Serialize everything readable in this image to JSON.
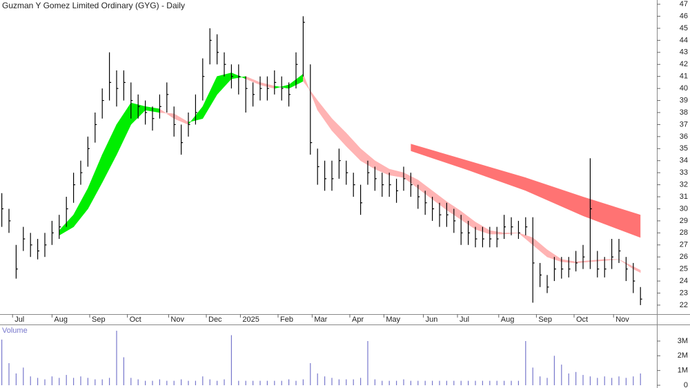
{
  "chart_data": [
    {
      "type": "hlc",
      "title": "Guzman Y Gomez Limited Ordinary (GYG) - Daily",
      "x": [
        1,
        5,
        9,
        13,
        17,
        21,
        25,
        29,
        33,
        37,
        41,
        45,
        49,
        53,
        57,
        61,
        65,
        69,
        73,
        77,
        81,
        85,
        89,
        93,
        97,
        101,
        105,
        109,
        113,
        117,
        121,
        125,
        129,
        133,
        137,
        141,
        145,
        149,
        153,
        157,
        161,
        165,
        169,
        173,
        177,
        181,
        185,
        189,
        193,
        197,
        201,
        205,
        209,
        213,
        217,
        221,
        225,
        229,
        233,
        237,
        241,
        245,
        249,
        253,
        257,
        261,
        265,
        269,
        273,
        277,
        281,
        285,
        289,
        293,
        297,
        301,
        305,
        309,
        313,
        317,
        321,
        325,
        329,
        333,
        337,
        341,
        345,
        349,
        353,
        357
      ],
      "high": [
        31.3,
        30,
        27,
        28.5,
        28,
        27.5,
        28,
        29,
        29.5,
        31,
        33,
        34,
        36,
        38,
        40,
        43,
        41.5,
        41.5,
        40.5,
        39.5,
        39,
        38.5,
        39.5,
        40.5,
        38.5,
        37,
        38,
        39.5,
        42.5,
        45,
        44.5,
        43,
        42,
        42,
        41,
        40.5,
        41,
        41,
        41.5,
        41,
        40.5,
        43,
        46,
        42,
        35,
        34,
        34,
        35,
        34,
        33,
        32,
        34,
        33.5,
        33,
        33,
        32.5,
        33.5,
        33,
        32,
        31.5,
        31,
        30.5,
        30.5,
        30,
        29.5,
        29,
        28.5,
        28.5,
        28.5,
        28.5,
        29.5,
        29.3,
        29,
        29.3,
        29.3,
        25.5,
        24.5,
        26,
        26,
        26,
        26.5,
        27,
        34.2,
        26.5,
        26,
        27.5,
        27.5,
        26,
        25.5,
        23.5
      ],
      "low": [
        28.5,
        28,
        24.2,
        26.5,
        26,
        25.8,
        26,
        27,
        27.5,
        28.5,
        30.5,
        32,
        33.5,
        35.5,
        37.5,
        39,
        38.5,
        39,
        37.5,
        37.5,
        37,
        36.5,
        37.5,
        38,
        36,
        34.5,
        36,
        37,
        39,
        42,
        42,
        41,
        40,
        39.5,
        38,
        38.5,
        39,
        39,
        39.5,
        39,
        38.5,
        40,
        41,
        34.5,
        32,
        31.5,
        31.5,
        32.5,
        32,
        31,
        29.5,
        32,
        31.5,
        31,
        31,
        30.5,
        31.5,
        31,
        30,
        29.5,
        29,
        28.5,
        28.5,
        28,
        27,
        27,
        26.8,
        26.8,
        26.8,
        26.8,
        27.5,
        27.8,
        27.5,
        27.8,
        22.2,
        23.5,
        23,
        24,
        24.2,
        24.3,
        24.8,
        25,
        25,
        24.3,
        24.3,
        25,
        25.5,
        24,
        23,
        22
      ],
      "close": [
        30,
        29,
        25,
        27.5,
        27,
        26.5,
        27,
        28,
        28.5,
        30,
        32,
        33,
        35,
        37,
        39,
        40.5,
        40,
        40.5,
        39,
        38.5,
        38,
        37.5,
        38.5,
        39.5,
        37,
        35.5,
        37,
        38,
        41,
        44,
        43,
        42,
        41,
        41,
        40,
        39.5,
        40,
        40,
        40.5,
        40,
        39.5,
        42,
        45.5,
        35.5,
        33.5,
        32.5,
        32.5,
        34,
        33,
        32,
        30.5,
        33,
        32.5,
        32,
        32,
        31.5,
        32.5,
        32,
        31,
        30.5,
        30,
        29.5,
        29.5,
        29,
        28,
        28,
        27.5,
        27.5,
        27.5,
        27.5,
        28.5,
        28.5,
        28,
        28.5,
        25.5,
        24.5,
        23.5,
        25,
        25,
        25,
        25.5,
        26,
        30,
        25,
        25,
        26,
        26.5,
        25,
        24,
        22.5
      ],
      "color": "#000000",
      "ema_band": {
        "x": [
          33,
          41,
          49,
          57,
          65,
          73,
          81,
          89,
          97,
          105,
          113,
          121,
          129,
          137,
          145,
          153,
          161,
          169,
          177,
          185,
          193,
          201,
          209,
          217,
          225,
          233,
          241,
          249,
          257,
          265,
          273,
          281,
          289,
          297,
          305,
          313,
          321,
          329,
          337,
          345,
          353,
          357
        ],
        "fast": [
          28.2,
          29.5,
          31.7,
          34.5,
          37,
          38.8,
          38.5,
          38.3,
          37.5,
          37,
          38.5,
          41,
          41.3,
          40.8,
          40.3,
          40.0,
          40.3,
          41.2,
          38.2,
          36.5,
          35.2,
          34,
          33.3,
          32.8,
          32.6,
          31.7,
          30.8,
          29.9,
          29.1,
          28.3,
          27.9,
          27.9,
          28.0,
          27.0,
          26.0,
          25.6,
          25.5,
          25.6,
          25.7,
          25.8,
          25.0,
          24.7
        ],
        "slow": [
          27.8,
          28.5,
          30,
          32.2,
          34.5,
          37,
          38.2,
          38,
          37.9,
          37.2,
          37.5,
          39.5,
          40.8,
          41.0,
          40.5,
          40.2,
          40.0,
          40.6,
          39,
          37.5,
          36.3,
          35,
          34,
          33.3,
          33.0,
          32.4,
          31.5,
          30.6,
          29.8,
          28.9,
          28.2,
          28.0,
          28.0,
          27.6,
          26.6,
          25.8,
          25.6,
          25.7,
          25.8,
          25.8,
          25.2,
          24.9
        ],
        "up_color": "#00ee00",
        "down_color": "#ffb3b3"
      },
      "long_band": {
        "x": [
          229,
          261,
          293,
          325,
          357
        ],
        "upper": [
          35.4,
          34,
          32.6,
          31,
          29.5
        ],
        "lower": [
          34.8,
          33.2,
          31.5,
          29.4,
          27.6
        ],
        "color": "#ff7373"
      },
      "xlim": [
        0,
        366.15
      ],
      "xticks": [
        {
          "value": 7,
          "label": "Jul"
        },
        {
          "value": 29,
          "label": "Aug"
        },
        {
          "value": 50,
          "label": "Sep"
        },
        {
          "value": 71,
          "label": "Oct"
        },
        {
          "value": 94,
          "label": "Nov"
        },
        {
          "value": 115,
          "label": "Dec"
        },
        {
          "value": 134,
          "label": "2025"
        },
        {
          "value": 155,
          "label": "Feb"
        },
        {
          "value": 174,
          "label": "Mar"
        },
        {
          "value": 195,
          "label": "Apr"
        },
        {
          "value": 214,
          "label": "May"
        },
        {
          "value": 236,
          "label": "Jun"
        },
        {
          "value": 255,
          "label": "Jul"
        },
        {
          "value": 278,
          "label": "Aug"
        },
        {
          "value": 299,
          "label": "Sep"
        },
        {
          "value": 320,
          "label": "Oct"
        },
        {
          "value": 342,
          "label": "Nov"
        }
      ],
      "ylim": [
        21.25,
        47.35
      ],
      "yticks": [
        22,
        23,
        24,
        25,
        26,
        27,
        28,
        29,
        30,
        31,
        32,
        33,
        34,
        35,
        36,
        37,
        38,
        39,
        40,
        41,
        42,
        43,
        44,
        45,
        46,
        47
      ]
    },
    {
      "type": "bar",
      "title": "Volume",
      "x": [
        1,
        5,
        9,
        13,
        17,
        21,
        25,
        29,
        33,
        37,
        41,
        45,
        49,
        53,
        57,
        61,
        65,
        69,
        73,
        77,
        81,
        85,
        89,
        93,
        97,
        101,
        105,
        109,
        113,
        117,
        121,
        125,
        129,
        133,
        137,
        141,
        145,
        149,
        153,
        157,
        161,
        165,
        169,
        173,
        177,
        181,
        185,
        189,
        193,
        197,
        201,
        205,
        209,
        213,
        217,
        221,
        225,
        229,
        233,
        237,
        241,
        245,
        249,
        253,
        257,
        261,
        265,
        269,
        273,
        277,
        281,
        285,
        289,
        293,
        297,
        301,
        305,
        309,
        313,
        317,
        321,
        325,
        329,
        333,
        337,
        341,
        345,
        349,
        353,
        357
      ],
      "values": [
        3.1,
        1.5,
        0.8,
        1.2,
        0.6,
        0.5,
        0.4,
        0.6,
        0.5,
        0.7,
        0.5,
        0.6,
        0.5,
        0.4,
        0.4,
        0.5,
        3.7,
        1.9,
        0.5,
        0.4,
        0.3,
        0.3,
        0.4,
        0.3,
        0.3,
        0.4,
        0.3,
        0.3,
        0.6,
        0.4,
        0.3,
        0.4,
        3.4,
        0.3,
        0.3,
        0.3,
        0.3,
        0.3,
        0.3,
        0.3,
        0.4,
        0.3,
        0.4,
        1.5,
        0.8,
        0.6,
        0.5,
        0.4,
        0.4,
        0.4,
        0.5,
        3.0,
        0.4,
        0.3,
        0.3,
        0.3,
        0.4,
        0.3,
        0.3,
        0.3,
        0.3,
        0.3,
        0.3,
        0.3,
        0.3,
        0.3,
        0.3,
        0.3,
        0.3,
        0.3,
        0.3,
        0.3,
        0.3,
        3.0,
        1.2,
        0.6,
        0.5,
        2.0,
        1.4,
        0.8,
        0.9,
        0.7,
        0.6,
        0.5,
        0.6,
        0.5,
        0.6,
        0.5,
        0.6,
        0.8
      ],
      "color": "#7777cc",
      "xlim": [
        0,
        366.15
      ],
      "ylim": [
        0,
        4.125
      ],
      "yticks": [
        {
          "value": 0,
          "label": "0"
        },
        {
          "value": 1,
          "label": "1M"
        },
        {
          "value": 2,
          "label": "2M"
        },
        {
          "value": 3,
          "label": "3M"
        }
      ]
    }
  ]
}
